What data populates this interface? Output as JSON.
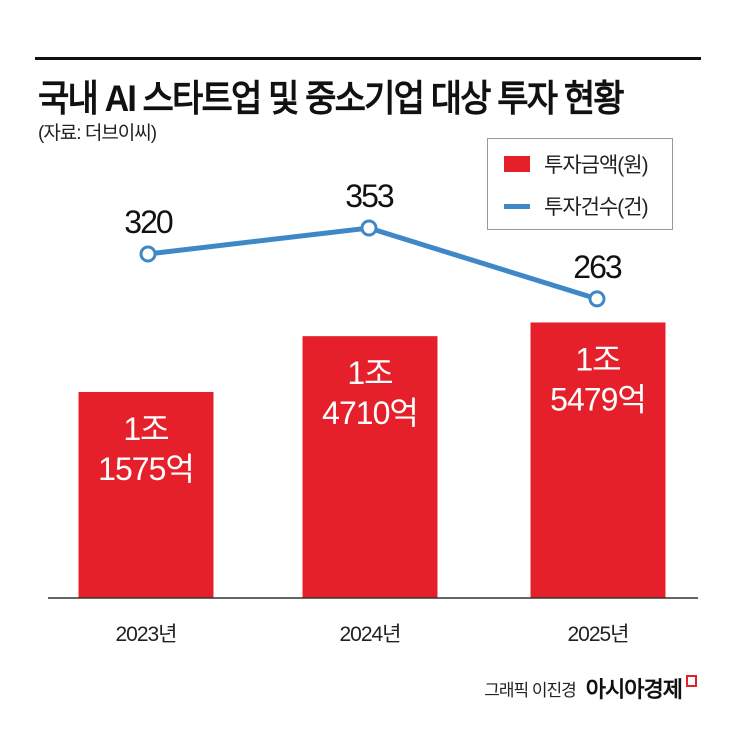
{
  "title": "국내 AI 스타트업 및 중소기업 대상 투자 현황",
  "source": "(자료: 더브이씨)",
  "credit": {
    "byline": "그래픽 이진경",
    "logo": "아시아경제"
  },
  "colors": {
    "bar": "#e5202b",
    "line": "#3f88c8"
  },
  "chart_data": {
    "type": "bar+line",
    "title": "국내 AI 스타트업 및 중소기업 대상 투자 현황",
    "categories": [
      "2023년",
      "2024년",
      "2025년"
    ],
    "series": [
      {
        "name": "투자금액(원)",
        "type": "bar",
        "values": [
          11575,
          14710,
          15479
        ],
        "unit": "억원",
        "labels": [
          [
            "1조",
            "1575억"
          ],
          [
            "1조",
            "4710억"
          ],
          [
            "1조",
            "5479억"
          ]
        ]
      },
      {
        "name": "투자건수(건)",
        "type": "line",
        "values": [
          320,
          353,
          263
        ],
        "labels": [
          "320",
          "353",
          "263"
        ]
      }
    ],
    "legend": "top-right",
    "grid": false
  }
}
